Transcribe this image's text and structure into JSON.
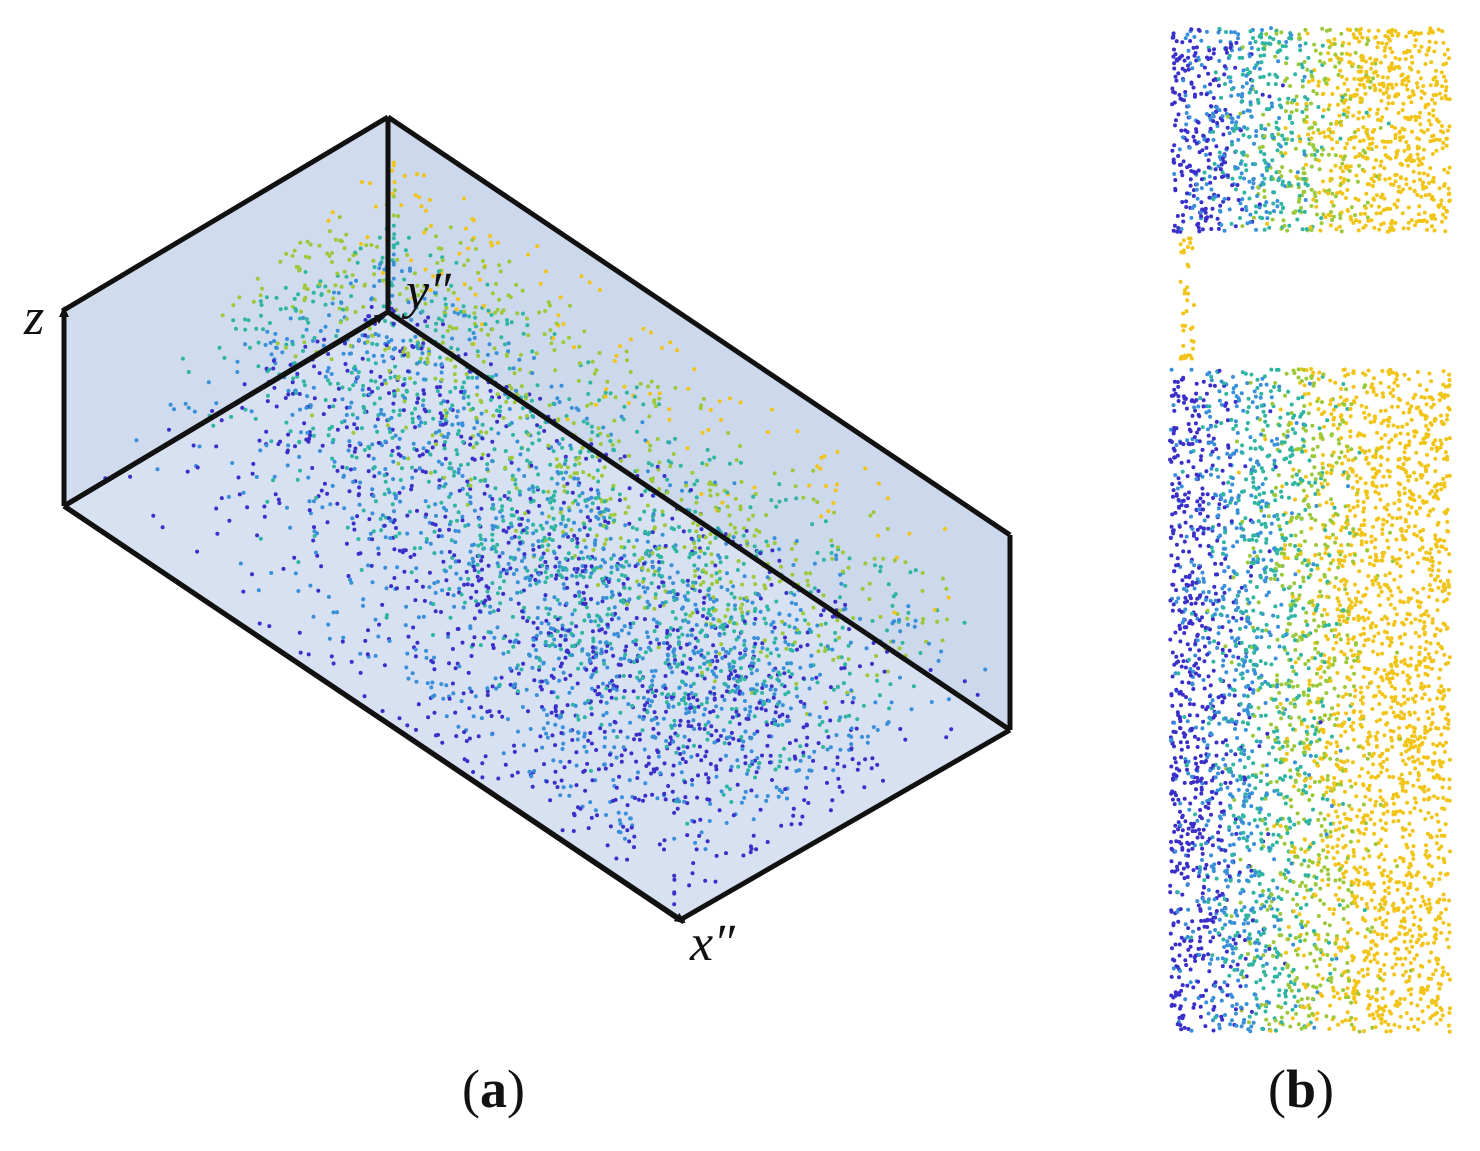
{
  "panel_a": {
    "axes": {
      "z": "z",
      "y": "y″",
      "x": "x″"
    },
    "caption_open": "(",
    "caption_letter": "a",
    "caption_close": ")"
  },
  "panel_b": {
    "caption_open": "(",
    "caption_letter": "b",
    "caption_close": ")"
  },
  "colors": {
    "box_fill": "#cbd8ec",
    "box_stroke": "#111111",
    "points_low": "#3b2fc9",
    "points_mid_low": "#3a8fd9",
    "points_mid": "#2fb5a2",
    "points_mid_high": "#9cc93a",
    "points_high": "#f2c418"
  }
}
